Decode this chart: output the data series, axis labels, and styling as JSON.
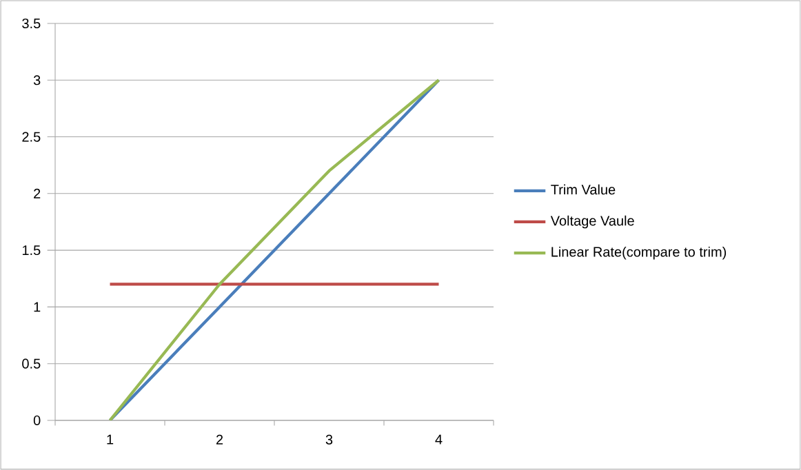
{
  "chart_data": {
    "type": "line",
    "categories": [
      "1",
      "2",
      "3",
      "4"
    ],
    "series": [
      {
        "name": "Trim Value",
        "color": "#4a7ebb",
        "values": [
          0,
          1,
          2,
          3
        ]
      },
      {
        "name": "Voltage Vaule",
        "color": "#be4b48",
        "values": [
          1.2,
          1.2,
          1.2,
          1.2
        ]
      },
      {
        "name": "Linear Rate(compare to trim)",
        "color": "#98b954",
        "values": [
          0,
          1.2,
          2.2,
          3
        ]
      }
    ],
    "ylim": [
      0,
      3.5
    ],
    "yticks": [
      0,
      0.5,
      1,
      1.5,
      2,
      2.5,
      3,
      3.5
    ],
    "grid": "y",
    "legend": "right",
    "marker": "none",
    "line_style": "solid"
  }
}
